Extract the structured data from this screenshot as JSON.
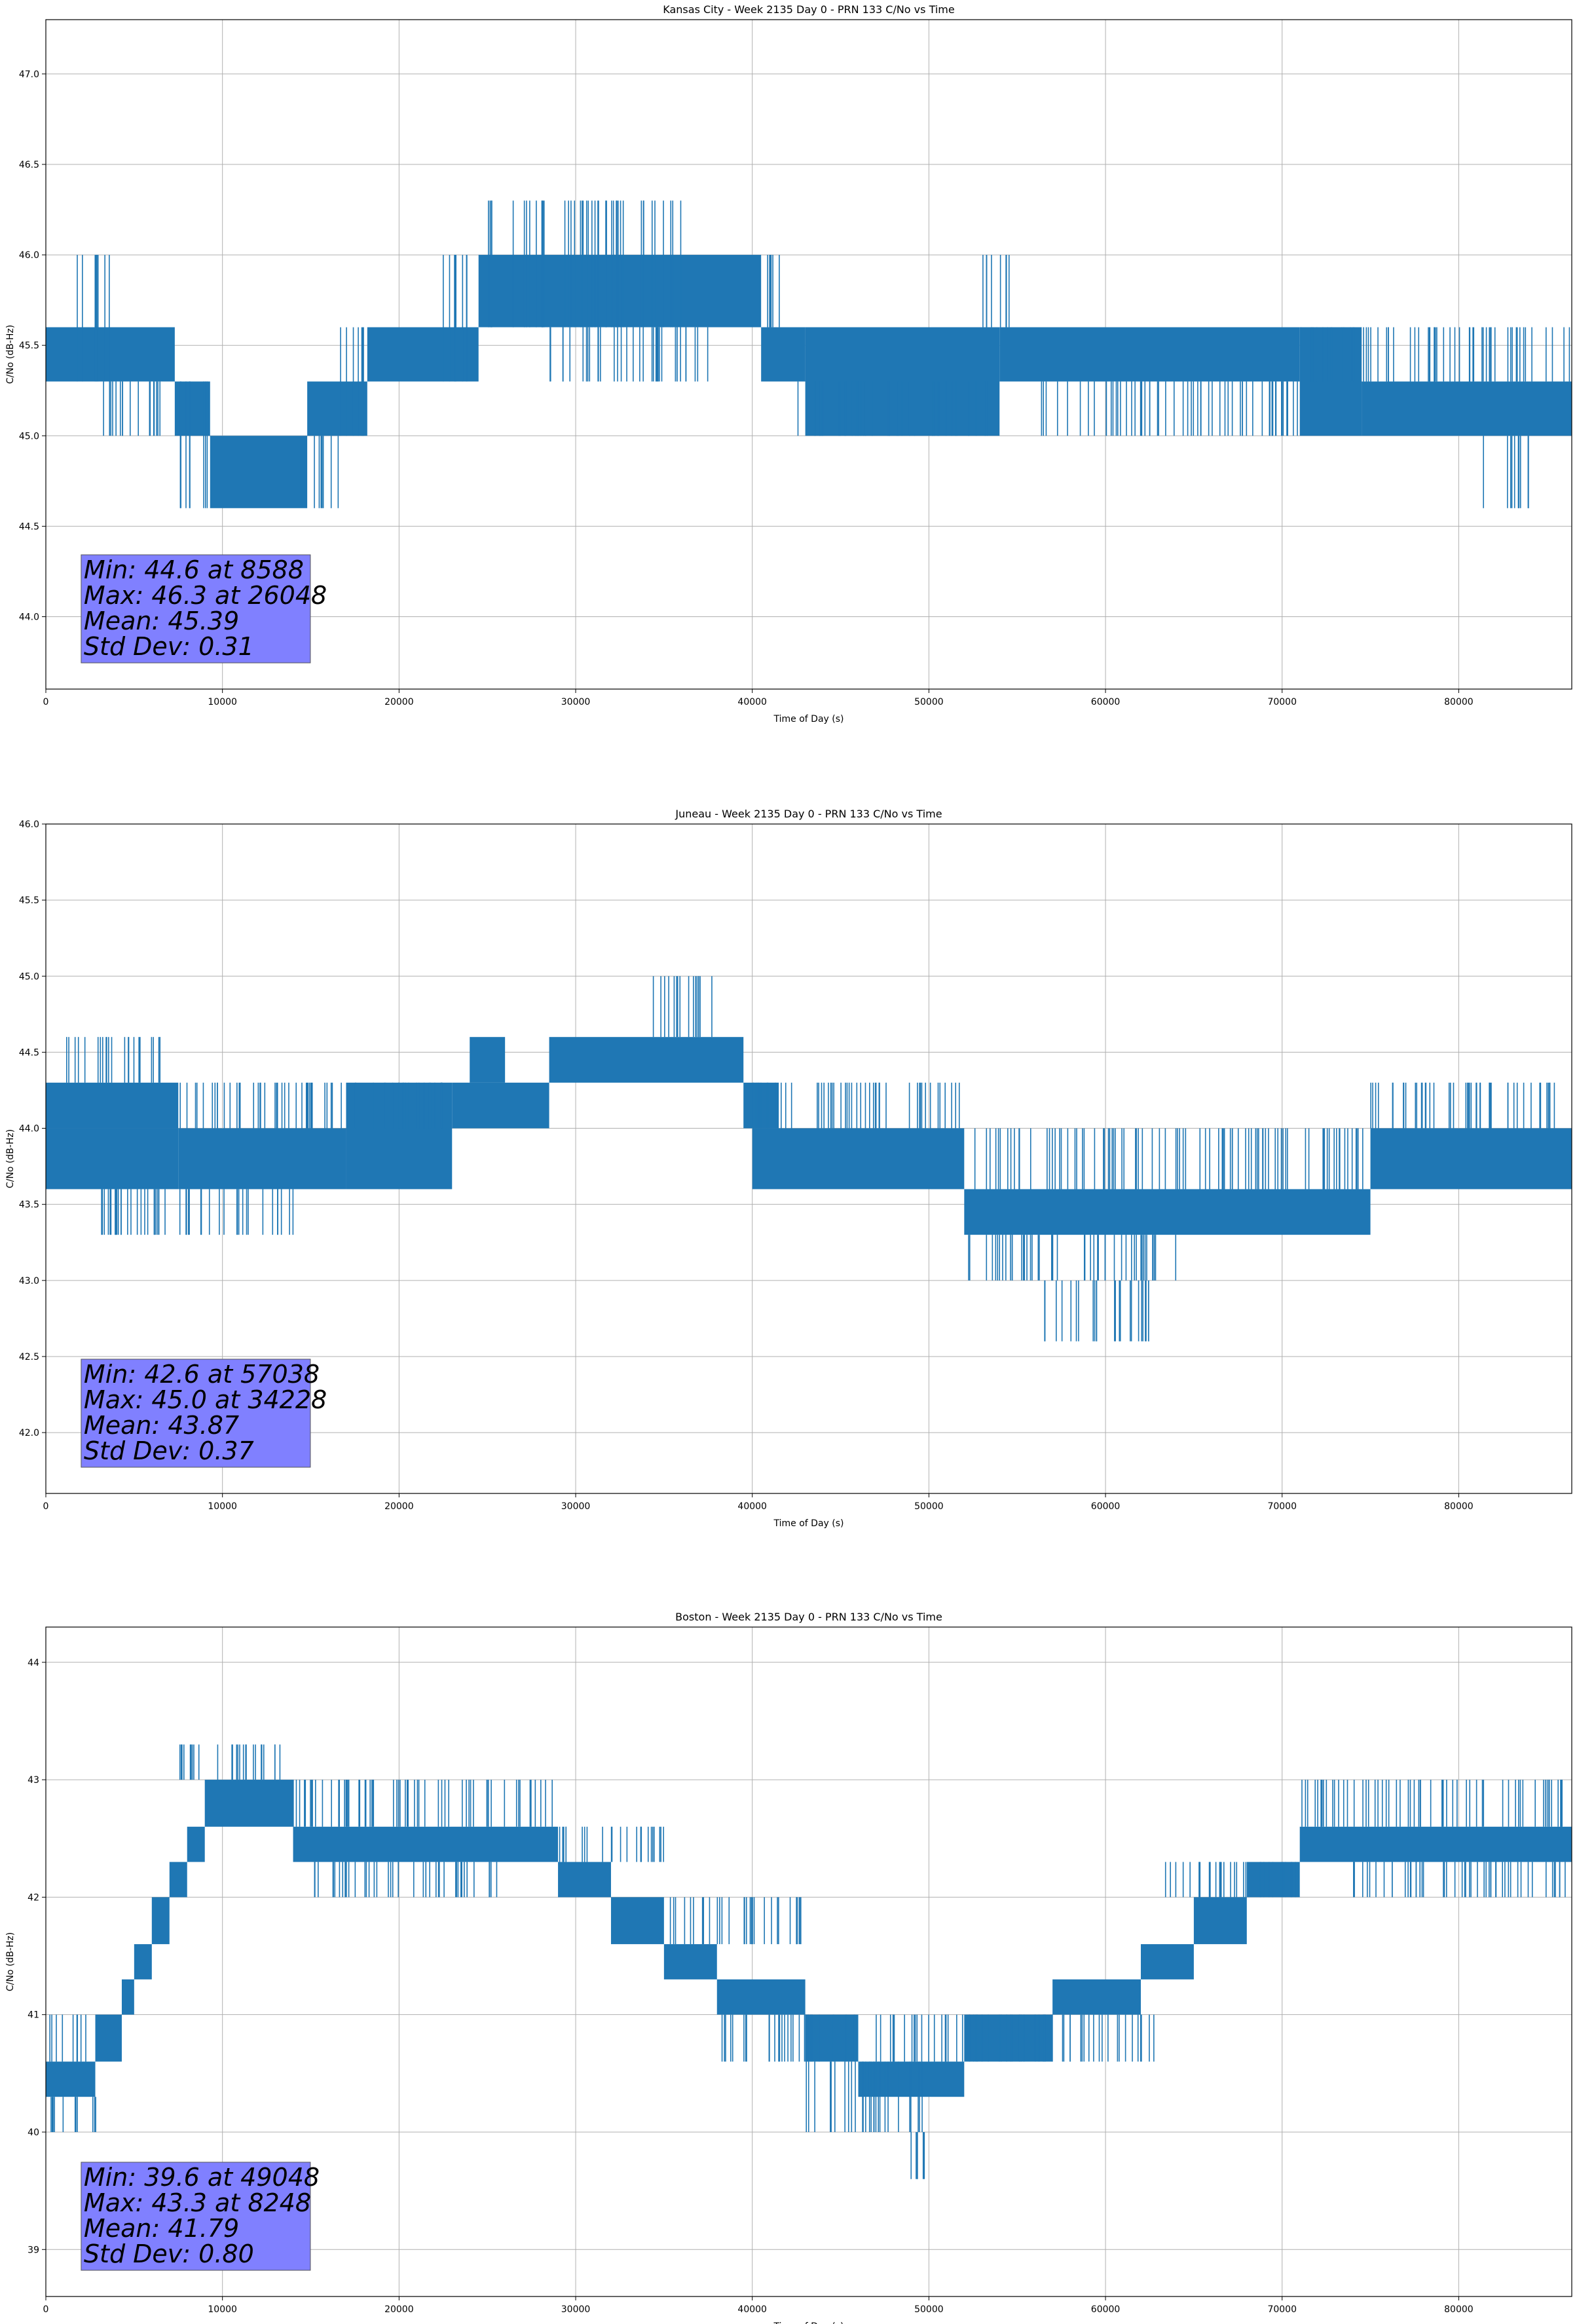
{
  "chart_data": [
    {
      "type": "line",
      "title": "Kansas City - Week 2135 Day 0 - PRN 133 C/No vs Time",
      "xlabel": "Time of Day (s)",
      "ylabel": "C/No (dB-Hz)",
      "xlim": [
        0,
        86400
      ],
      "ylim": [
        43.6,
        47.3
      ],
      "x_ticks": [
        0,
        10000,
        20000,
        30000,
        40000,
        50000,
        60000,
        70000,
        80000
      ],
      "y_ticks": [
        "44.0",
        "44.5",
        "45.0",
        "45.5",
        "46.0",
        "46.5",
        "47.0"
      ],
      "grid": true,
      "color": "#1f77b4",
      "series": [
        {
          "bands": [
            {
              "x": [
                0,
                7300
              ],
              "y": [
                45.3,
                45.6
              ]
            },
            {
              "x": [
                7300,
                9300
              ],
              "y": [
                45.0,
                45.3
              ]
            },
            {
              "x": [
                9300,
                14800
              ],
              "y": [
                44.6,
                45.0
              ]
            },
            {
              "x": [
                14800,
                18200
              ],
              "y": [
                45.0,
                45.3
              ]
            },
            {
              "x": [
                18200,
                24500
              ],
              "y": [
                45.3,
                45.6
              ]
            },
            {
              "x": [
                24500,
                40500
              ],
              "y": [
                45.6,
                46.0
              ]
            },
            {
              "x": [
                40500,
                43000
              ],
              "y": [
                45.3,
                45.6
              ]
            },
            {
              "x": [
                43000,
                54000
              ],
              "y": [
                45.0,
                45.6
              ]
            },
            {
              "x": [
                54000,
                71000
              ],
              "y": [
                45.3,
                45.6
              ]
            },
            {
              "x": [
                71000,
                74500
              ],
              "y": [
                45.0,
                45.6
              ]
            },
            {
              "x": [
                74500,
                86400
              ],
              "y": [
                45.0,
                45.3
              ]
            }
          ],
          "spikes": [
            {
              "x": [
                1400,
                3600
              ],
              "y": [
                45.3,
                46.0
              ]
            },
            {
              "x": [
                2800,
                7000
              ],
              "y": [
                45.0,
                45.3
              ]
            },
            {
              "x": [
                7300,
                9300
              ],
              "y": [
                44.6,
                45.3
              ]
            },
            {
              "x": [
                14800,
                16600
              ],
              "y": [
                44.6,
                45.0
              ]
            },
            {
              "x": [
                16500,
                18200
              ],
              "y": [
                45.0,
                45.6
              ]
            },
            {
              "x": [
                22300,
                24500
              ],
              "y": [
                45.3,
                46.0
              ]
            },
            {
              "x": [
                25000,
                36000
              ],
              "y": [
                45.6,
                46.3
              ]
            },
            {
              "x": [
                28500,
                37500
              ],
              "y": [
                45.3,
                45.6
              ]
            },
            {
              "x": [
                40500,
                42000
              ],
              "y": [
                45.6,
                46.0
              ]
            },
            {
              "x": [
                42500,
                53500
              ],
              "y": [
                45.0,
                45.3
              ]
            },
            {
              "x": [
                53000,
                55000
              ],
              "y": [
                45.6,
                46.0
              ]
            },
            {
              "x": [
                56000,
                71000
              ],
              "y": [
                45.0,
                45.3
              ]
            },
            {
              "x": [
                71000,
                86400
              ],
              "y": [
                45.3,
                45.6
              ]
            },
            {
              "x": [
                81000,
                84000
              ],
              "y": [
                44.6,
                45.0
              ]
            }
          ]
        }
      ],
      "stats": [
        "Min: 44.6 at 8588",
        "Max: 46.3 at 26048",
        "Mean: 45.39",
        "Std Dev: 0.31"
      ]
    },
    {
      "type": "line",
      "title": "Juneau - Week 2135 Day 0 - PRN 133 C/No vs Time",
      "xlabel": "Time of Day (s)",
      "ylabel": "C/No (dB-Hz)",
      "xlim": [
        0,
        86400
      ],
      "ylim": [
        41.6,
        46.0
      ],
      "x_ticks": [
        0,
        10000,
        20000,
        30000,
        40000,
        50000,
        60000,
        70000,
        80000
      ],
      "y_ticks": [
        "42.0",
        "42.5",
        "43.0",
        "43.5",
        "44.0",
        "44.5",
        "45.0",
        "45.5",
        "46.0"
      ],
      "grid": true,
      "color": "#1f77b4",
      "series": [
        {
          "bands": [
            {
              "x": [
                0,
                7500
              ],
              "y": [
                44.0,
                44.3
              ]
            },
            {
              "x": [
                0,
                7500
              ],
              "y": [
                43.6,
                44.0
              ]
            },
            {
              "x": [
                7500,
                17000
              ],
              "y": [
                43.6,
                44.0
              ]
            },
            {
              "x": [
                17000,
                23000
              ],
              "y": [
                43.6,
                44.3
              ]
            },
            {
              "x": [
                23000,
                28500
              ],
              "y": [
                44.0,
                44.3
              ]
            },
            {
              "x": [
                24000,
                26000
              ],
              "y": [
                44.3,
                44.6
              ]
            },
            {
              "x": [
                28500,
                39500
              ],
              "y": [
                44.3,
                44.6
              ]
            },
            {
              "x": [
                39500,
                41500
              ],
              "y": [
                44.0,
                44.3
              ]
            },
            {
              "x": [
                40000,
                52000
              ],
              "y": [
                43.6,
                44.0
              ]
            },
            {
              "x": [
                52000,
                75000
              ],
              "y": [
                43.3,
                43.6
              ]
            },
            {
              "x": [
                75000,
                86400
              ],
              "y": [
                43.6,
                44.0
              ]
            }
          ],
          "spikes": [
            {
              "x": [
                1000,
                6500
              ],
              "y": [
                44.3,
                44.6
              ]
            },
            {
              "x": [
                3000,
                15000
              ],
              "y": [
                43.3,
                43.6
              ]
            },
            {
              "x": [
                7500,
                23000
              ],
              "y": [
                44.0,
                44.3
              ]
            },
            {
              "x": [
                34000,
                38000
              ],
              "y": [
                44.6,
                45.0
              ]
            },
            {
              "x": [
                40000,
                52000
              ],
              "y": [
                44.0,
                44.3
              ]
            },
            {
              "x": [
                52000,
                64000
              ],
              "y": [
                43.0,
                43.3
              ]
            },
            {
              "x": [
                56500,
                62500
              ],
              "y": [
                42.6,
                43.0
              ]
            },
            {
              "x": [
                52000,
                75000
              ],
              "y": [
                43.6,
                44.0
              ]
            },
            {
              "x": [
                75000,
                86400
              ],
              "y": [
                44.0,
                44.3
              ]
            }
          ]
        }
      ],
      "stats": [
        "Min: 42.6 at 57038",
        "Max: 45.0 at 34228",
        "Mean: 43.87",
        "Std Dev: 0.37"
      ]
    },
    {
      "type": "line",
      "title": "Boston - Week 2135 Day 0 - PRN 133 C/No vs Time",
      "xlabel": "Time of Day (s)",
      "ylabel": "C/No (dB-Hz)",
      "xlim": [
        0,
        86400
      ],
      "ylim": [
        38.6,
        44.3
      ],
      "x_ticks": [
        0,
        10000,
        20000,
        30000,
        40000,
        50000,
        60000,
        70000,
        80000
      ],
      "y_ticks": [
        "39",
        "40",
        "41",
        "42",
        "43",
        "44"
      ],
      "grid": true,
      "color": "#1f77b4",
      "series": [
        {
          "bands": [
            {
              "x": [
                0,
                2800
              ],
              "y": [
                40.3,
                40.6
              ]
            },
            {
              "x": [
                2800,
                4300
              ],
              "y": [
                40.6,
                41.0
              ]
            },
            {
              "x": [
                4300,
                5000
              ],
              "y": [
                41.0,
                41.3
              ]
            },
            {
              "x": [
                5000,
                6000
              ],
              "y": [
                41.3,
                41.6
              ]
            },
            {
              "x": [
                6000,
                7000
              ],
              "y": [
                41.6,
                42.0
              ]
            },
            {
              "x": [
                7000,
                8000
              ],
              "y": [
                42.0,
                42.3
              ]
            },
            {
              "x": [
                8000,
                9000
              ],
              "y": [
                42.3,
                42.6
              ]
            },
            {
              "x": [
                9000,
                14000
              ],
              "y": [
                42.6,
                43.0
              ]
            },
            {
              "x": [
                14000,
                29000
              ],
              "y": [
                42.3,
                42.6
              ]
            },
            {
              "x": [
                29000,
                32000
              ],
              "y": [
                42.0,
                42.3
              ]
            },
            {
              "x": [
                32000,
                35000
              ],
              "y": [
                41.6,
                42.0
              ]
            },
            {
              "x": [
                35000,
                38000
              ],
              "y": [
                41.3,
                41.6
              ]
            },
            {
              "x": [
                38000,
                43000
              ],
              "y": [
                41.0,
                41.3
              ]
            },
            {
              "x": [
                43000,
                46000
              ],
              "y": [
                40.6,
                41.0
              ]
            },
            {
              "x": [
                46000,
                52000
              ],
              "y": [
                40.3,
                40.6
              ]
            },
            {
              "x": [
                52000,
                57000
              ],
              "y": [
                40.6,
                41.0
              ]
            },
            {
              "x": [
                57000,
                62000
              ],
              "y": [
                41.0,
                41.3
              ]
            },
            {
              "x": [
                62000,
                65000
              ],
              "y": [
                41.3,
                41.6
              ]
            },
            {
              "x": [
                65000,
                68000
              ],
              "y": [
                41.6,
                42.0
              ]
            },
            {
              "x": [
                68000,
                71000
              ],
              "y": [
                42.0,
                42.3
              ]
            },
            {
              "x": [
                71000,
                86400
              ],
              "y": [
                42.3,
                42.6
              ]
            }
          ],
          "spikes": [
            {
              "x": [
                200,
                3000
              ],
              "y": [
                40.0,
                40.3
              ]
            },
            {
              "x": [
                200,
                2500
              ],
              "y": [
                40.6,
                41.0
              ]
            },
            {
              "x": [
                7500,
                14000
              ],
              "y": [
                43.0,
                43.3
              ]
            },
            {
              "x": [
                14000,
                29000
              ],
              "y": [
                42.6,
                43.0
              ]
            },
            {
              "x": [
                15000,
                26000
              ],
              "y": [
                42.0,
                42.3
              ]
            },
            {
              "x": [
                29000,
                35000
              ],
              "y": [
                42.3,
                42.6
              ]
            },
            {
              "x": [
                35000,
                43000
              ],
              "y": [
                41.6,
                42.0
              ]
            },
            {
              "x": [
                38000,
                46000
              ],
              "y": [
                40.6,
                41.0
              ]
            },
            {
              "x": [
                43000,
                50000
              ],
              "y": [
                40.0,
                40.6
              ]
            },
            {
              "x": [
                48500,
                50000
              ],
              "y": [
                39.6,
                40.0
              ]
            },
            {
              "x": [
                47000,
                56000
              ],
              "y": [
                40.6,
                41.0
              ]
            },
            {
              "x": [
                56000,
                63000
              ],
              "y": [
                40.6,
                41.0
              ]
            },
            {
              "x": [
                63000,
                71000
              ],
              "y": [
                42.0,
                42.3
              ]
            },
            {
              "x": [
                71000,
                86400
              ],
              "y": [
                42.6,
                43.0
              ]
            },
            {
              "x": [
                74000,
                86400
              ],
              "y": [
                42.0,
                42.3
              ]
            }
          ]
        }
      ],
      "stats": [
        "Min: 39.6 at 49048",
        "Max: 43.3 at 8248",
        "Mean: 41.79",
        "Std Dev: 0.80"
      ]
    }
  ]
}
